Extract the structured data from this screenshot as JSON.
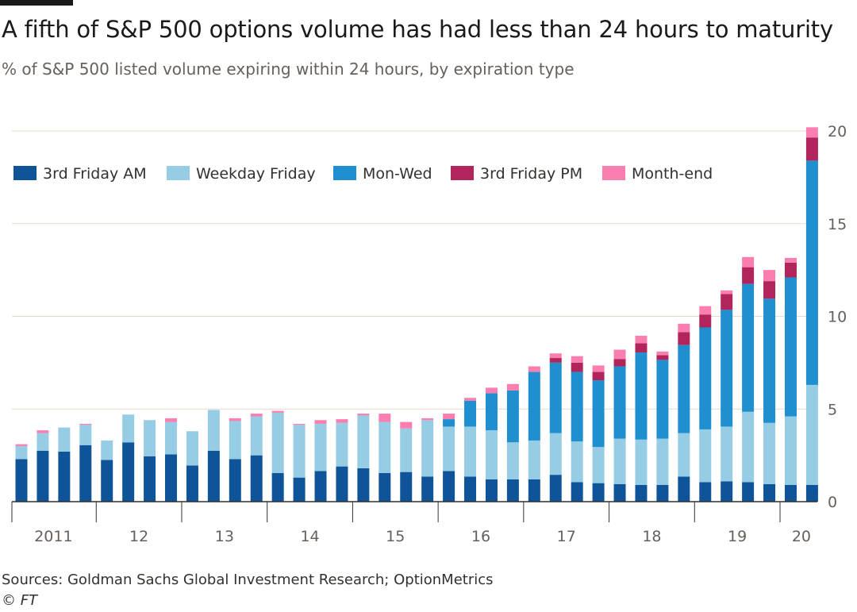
{
  "header": {
    "title": "A fifth of S&P 500 options volume has had less than 24 hours to maturity",
    "subtitle": "% of S&P 500 listed volume expiring within 24 hours, by expiration type"
  },
  "footer": {
    "source": "Sources: Goldman Sachs Global Investment Research; OptionMetrics",
    "copyright": "© FT"
  },
  "colors": {
    "background": "#ffffff",
    "gridline": "#e6d9ce",
    "axis": "#33302e",
    "tick_text": "#66605c"
  },
  "chart_data": {
    "type": "bar",
    "stacked": true,
    "title": "A fifth of S&P 500 options volume has had less than 24 hours to maturity",
    "subtitle": "% of S&P 500 listed volume expiring within 24 hours, by expiration type",
    "xlabel": "",
    "ylabel": "",
    "ylim": [
      0,
      20
    ],
    "yticks": [
      0,
      5,
      10,
      15,
      20
    ],
    "y_axis_side": "right",
    "grid": true,
    "legend_position": "top-left",
    "x_axis_groups": [
      {
        "label": "2011",
        "start": 0,
        "end": 3
      },
      {
        "label": "12",
        "start": 4,
        "end": 7
      },
      {
        "label": "13",
        "start": 8,
        "end": 11
      },
      {
        "label": "14",
        "start": 12,
        "end": 15
      },
      {
        "label": "15",
        "start": 16,
        "end": 19
      },
      {
        "label": "16",
        "start": 20,
        "end": 23
      },
      {
        "label": "17",
        "start": 24,
        "end": 27
      },
      {
        "label": "18",
        "start": 28,
        "end": 31
      },
      {
        "label": "19",
        "start": 32,
        "end": 35
      },
      {
        "label": "20",
        "start": 36,
        "end": 37
      }
    ],
    "categories": [
      "2011 Q1",
      "2011 Q2",
      "2011 Q3",
      "2011 Q4",
      "2012 Q1",
      "2012 Q2",
      "2012 Q3",
      "2012 Q4",
      "2013 Q1",
      "2013 Q2",
      "2013 Q3",
      "2013 Q4",
      "2014 Q1",
      "2014 Q2",
      "2014 Q3",
      "2014 Q4",
      "2015 Q1",
      "2015 Q2",
      "2015 Q3",
      "2015 Q4",
      "2016 Q1",
      "2016 Q2",
      "2016 Q3",
      "2016 Q4",
      "2017 Q1",
      "2017 Q2",
      "2017 Q3",
      "2017 Q4",
      "2018 Q1",
      "2018 Q2",
      "2018 Q3",
      "2018 Q4",
      "2019 Q1",
      "2019 Q2",
      "2019 Q3",
      "2019 Q4",
      "2020 Q1",
      "2020 Q2"
    ],
    "series": [
      {
        "name": "3rd Friday AM",
        "color": "#0f5499",
        "values": [
          2.3,
          2.75,
          2.7,
          3.05,
          2.25,
          3.2,
          2.45,
          2.55,
          1.95,
          2.75,
          2.3,
          2.5,
          1.55,
          1.3,
          1.65,
          1.9,
          1.8,
          1.55,
          1.6,
          1.35,
          1.65,
          1.35,
          1.2,
          1.2,
          1.2,
          1.45,
          1.05,
          1.0,
          0.95,
          0.9,
          0.9,
          1.35,
          1.05,
          1.1,
          1.05,
          0.95,
          0.9,
          0.9
        ]
      },
      {
        "name": "Weekday Friday",
        "color": "#96cce4",
        "values": [
          0.7,
          0.95,
          1.3,
          1.1,
          1.05,
          1.5,
          1.95,
          1.75,
          1.85,
          2.2,
          2.05,
          2.1,
          3.25,
          2.85,
          2.55,
          2.35,
          2.85,
          2.75,
          2.35,
          3.05,
          2.4,
          2.7,
          2.65,
          2.0,
          2.1,
          2.25,
          2.2,
          1.95,
          2.45,
          2.45,
          2.5,
          2.35,
          2.85,
          2.95,
          3.8,
          3.3,
          3.7,
          5.4
        ]
      },
      {
        "name": "Mon-Wed",
        "color": "#1f8fd0",
        "values": [
          0,
          0,
          0,
          0,
          0,
          0,
          0,
          0,
          0,
          0,
          0,
          0,
          0,
          0,
          0,
          0,
          0,
          0,
          0,
          0,
          0.4,
          1.4,
          2.0,
          2.8,
          3.7,
          3.8,
          3.75,
          3.6,
          3.9,
          4.7,
          4.25,
          4.75,
          5.5,
          6.3,
          6.9,
          6.7,
          7.5,
          12.1
        ]
      },
      {
        "name": "3rd Friday PM",
        "color": "#b2255c",
        "values": [
          0,
          0,
          0,
          0,
          0,
          0,
          0,
          0,
          0,
          0,
          0,
          0,
          0,
          0,
          0,
          0,
          0,
          0,
          0,
          0,
          0,
          0,
          0,
          0,
          0,
          0.25,
          0.5,
          0.45,
          0.4,
          0.5,
          0.25,
          0.7,
          0.7,
          0.85,
          0.9,
          0.95,
          0.8,
          1.25
        ]
      },
      {
        "name": "Month-end",
        "color": "#fa7fb0",
        "values": [
          0.1,
          0.15,
          0,
          0.05,
          0,
          0,
          0,
          0.2,
          0,
          0,
          0.15,
          0.15,
          0.1,
          0.05,
          0.2,
          0.2,
          0.1,
          0.45,
          0.35,
          0.1,
          0.3,
          0.15,
          0.3,
          0.35,
          0.3,
          0.25,
          0.35,
          0.35,
          0.5,
          0.4,
          0.2,
          0.45,
          0.45,
          0.2,
          0.55,
          0.6,
          0.25,
          0.55
        ]
      }
    ]
  }
}
